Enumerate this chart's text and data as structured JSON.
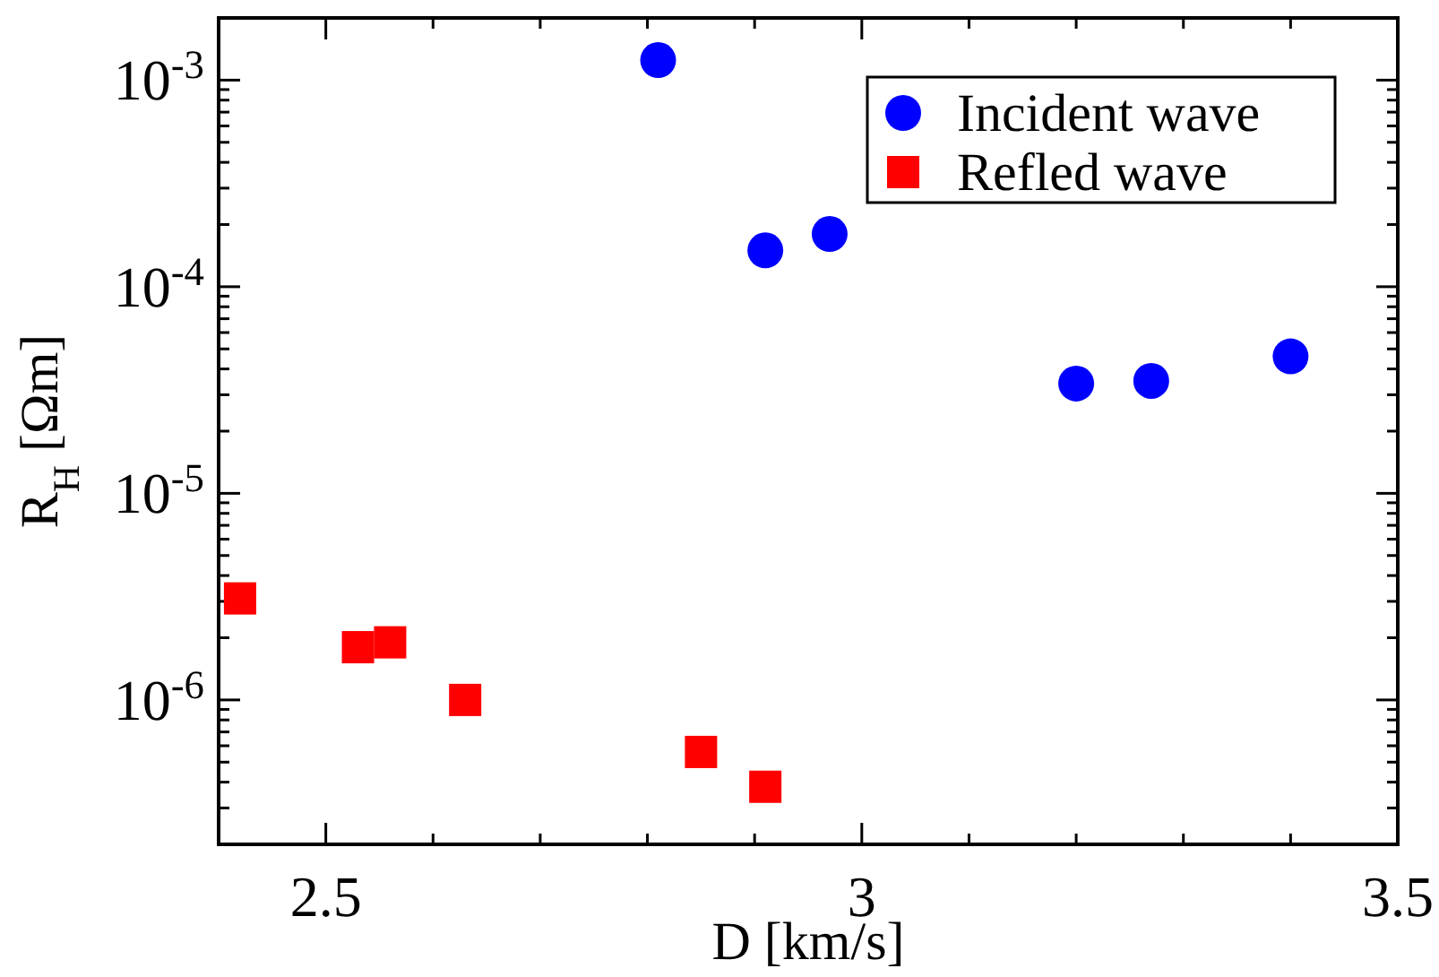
{
  "chart_data": {
    "type": "scatter",
    "xlabel": "D [km/s]",
    "ylabel": "R$_{H}$ [Ωm]",
    "log": "y",
    "xlim": [
      2.4,
      3.5
    ],
    "ylim": [
      2e-07,
      0.002
    ],
    "xticks": [
      {
        "value": 2.4,
        "label": null
      },
      2.5,
      {
        "value": 2.6,
        "label": null
      },
      {
        "value": 2.7,
        "label": null
      },
      {
        "value": 2.8,
        "label": null
      },
      {
        "value": 2.9,
        "label": null
      },
      3,
      {
        "value": 3.1,
        "label": null
      },
      {
        "value": 3.2,
        "label": null
      },
      {
        "value": 3.3,
        "label": null
      },
      {
        "value": 3.4,
        "label": null
      },
      3.5
    ],
    "yticks": [
      {
        "value": 3e-07,
        "label": null
      },
      {
        "value": 4e-07,
        "label": null
      },
      {
        "value": 5e-07,
        "label": null
      },
      {
        "value": 6e-07,
        "label": null
      },
      {
        "value": 7e-07,
        "label": null
      },
      {
        "value": 8e-07,
        "label": null
      },
      {
        "value": 9e-07,
        "label": null
      },
      {
        "value": 1e-06,
        "label": "10$^{-6}$"
      },
      {
        "value": 2e-06,
        "label": null
      },
      {
        "value": 3e-06,
        "label": null
      },
      {
        "value": 4e-06,
        "label": null
      },
      {
        "value": 5e-06,
        "label": null
      },
      {
        "value": 6e-06,
        "label": null
      },
      {
        "value": 7e-06,
        "label": null
      },
      {
        "value": 8e-06,
        "label": null
      },
      {
        "value": 9e-06,
        "label": null
      },
      {
        "value": 1e-05,
        "label": "10$^{-5}$"
      },
      {
        "value": 2e-05,
        "label": null
      },
      {
        "value": 3e-05,
        "label": null
      },
      {
        "value": 4e-05,
        "label": null
      },
      {
        "value": 5e-05,
        "label": null
      },
      {
        "value": 6e-05,
        "label": null
      },
      {
        "value": 7e-05,
        "label": null
      },
      {
        "value": 8e-05,
        "label": null
      },
      {
        "value": 9e-05,
        "label": null
      },
      {
        "value": 0.0001,
        "label": "10$^{-4}$"
      },
      {
        "value": 0.0002,
        "label": null
      },
      {
        "value": 0.0003,
        "label": null
      },
      {
        "value": 0.0004,
        "label": null
      },
      {
        "value": 0.0005,
        "label": null
      },
      {
        "value": 0.0006,
        "label": null
      },
      {
        "value": 0.0007,
        "label": null
      },
      {
        "value": 0.0008,
        "label": null
      },
      {
        "value": 0.0009,
        "label": null
      },
      {
        "value": 0.001,
        "label": "10$^{-3}$"
      }
    ],
    "grid": false,
    "legend": "top right",
    "series": [
      {
        "name": "Incident wave",
        "color": "#0000ff",
        "marker": "circle",
        "x": [
          2.81,
          2.91,
          2.97,
          3.2,
          3.27,
          3.4
        ],
        "values": [
          0.00125,
          0.00015,
          0.00018,
          3.4e-05,
          3.5e-05,
          4.6e-05
        ]
      },
      {
        "name": "Refled wave",
        "color": "#ff0000",
        "marker": "square",
        "x": [
          2.42,
          2.53,
          2.56,
          2.63,
          2.85,
          2.91
        ],
        "values": [
          3.1e-06,
          1.8e-06,
          1.9e-06,
          1e-06,
          5.6e-07,
          3.8e-07
        ]
      }
    ]
  }
}
